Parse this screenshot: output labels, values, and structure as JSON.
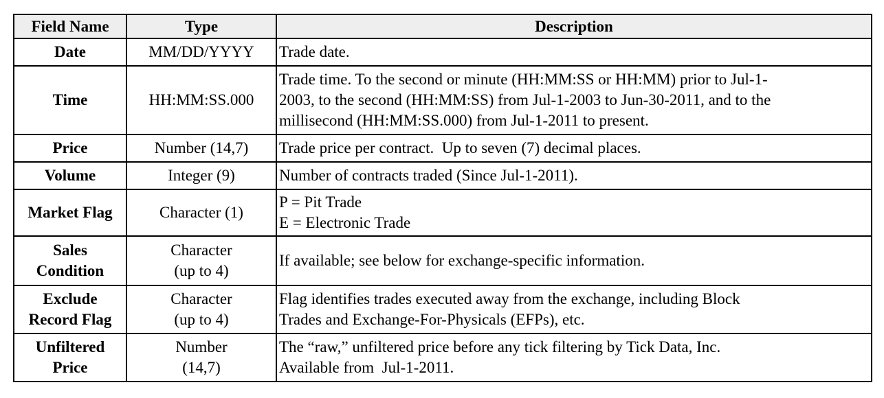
{
  "table": {
    "headers": {
      "field": "Field Name",
      "type": "Type",
      "description": "Description"
    },
    "rows": [
      {
        "field": [
          "Date"
        ],
        "type": [
          "MM/DD/YYYY"
        ],
        "description": [
          "Trade date."
        ]
      },
      {
        "field": [
          "Time"
        ],
        "type": [
          "HH:MM:SS.000"
        ],
        "description": [
          "Trade time. To the second or minute (HH:MM:SS or HH:MM) prior to Jul-1-",
          "2003, to the second (HH:MM:SS) from Jul-1-2003 to Jun-30-2011, and to the",
          "millisecond (HH:MM:SS.000) from Jul-1-2011 to present."
        ]
      },
      {
        "field": [
          "Price"
        ],
        "type": [
          "Number (14,7)"
        ],
        "description": [
          "Trade price per contract.  Up to seven (7) decimal places."
        ]
      },
      {
        "field": [
          "Volume"
        ],
        "type": [
          "Integer (9)"
        ],
        "description": [
          "Number of contracts traded (Since Jul-1-2011)."
        ]
      },
      {
        "field": [
          "Market Flag"
        ],
        "type": [
          "Character (1)"
        ],
        "description": [
          "P = Pit Trade",
          "E = Electronic Trade"
        ]
      },
      {
        "field": [
          "Sales",
          "Condition"
        ],
        "type": [
          "Character",
          "(up to 4)"
        ],
        "description": [
          "If available; see below for exchange-specific information."
        ]
      },
      {
        "field": [
          "Exclude",
          "Record Flag"
        ],
        "type": [
          "Character",
          "(up to 4)"
        ],
        "description": [
          "Flag identifies trades executed away from the exchange, including Block",
          "Trades and Exchange-For-Physicals (EFPs), etc."
        ]
      },
      {
        "field": [
          "Unfiltered",
          "Price"
        ],
        "type": [
          "Number",
          "(14,7)"
        ],
        "description": [
          "The “raw,” unfiltered price before any tick filtering by Tick Data, Inc.",
          "Available from  Jul-1-2011."
        ]
      }
    ]
  }
}
